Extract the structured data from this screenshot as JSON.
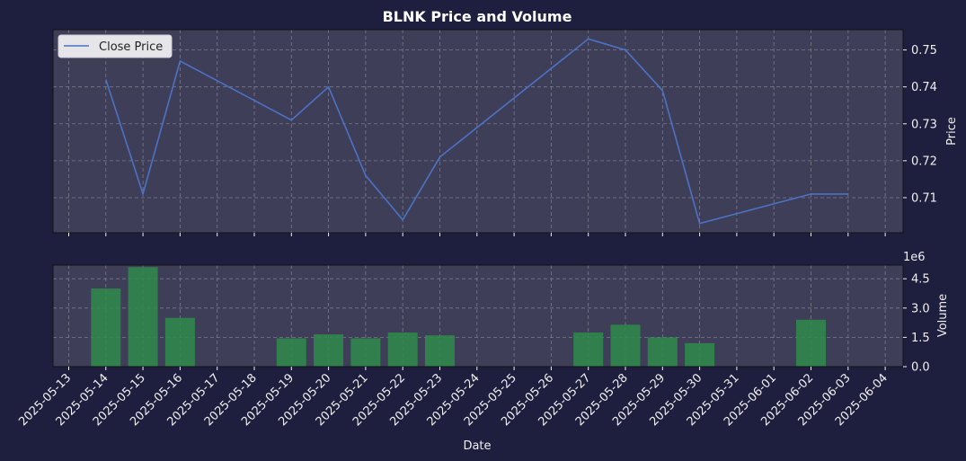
{
  "chart_data": {
    "title": "BLNK Price and Volume",
    "xlabel": "Date",
    "date_ticks": [
      "2025-05-13",
      "2025-05-14",
      "2025-05-15",
      "2025-05-16",
      "2025-05-17",
      "2025-05-18",
      "2025-05-19",
      "2025-05-20",
      "2025-05-21",
      "2025-05-22",
      "2025-05-23",
      "2025-05-24",
      "2025-05-25",
      "2025-05-26",
      "2025-05-27",
      "2025-05-28",
      "2025-05-29",
      "2025-05-30",
      "2025-05-31",
      "2025-06-01",
      "2025-06-02",
      "2025-06-03",
      "2025-06-04"
    ],
    "price_panel": {
      "type": "line",
      "ylabel": "Price",
      "ylim": [
        0.7005,
        0.7555
      ],
      "yticks": [
        0.71,
        0.72,
        0.73,
        0.74,
        0.75
      ],
      "ytick_labels": [
        "0.71",
        "0.72",
        "0.73",
        "0.74",
        "0.75"
      ],
      "grid": true,
      "legend_position": "top-left",
      "series": [
        {
          "name": "Close Price",
          "color": "#4c72c4",
          "x": [
            "2025-05-14",
            "2025-05-15",
            "2025-05-16",
            "2025-05-19",
            "2025-05-20",
            "2025-05-21",
            "2025-05-22",
            "2025-05-23",
            "2025-05-27",
            "2025-05-28",
            "2025-05-29",
            "2025-05-30",
            "2025-06-02",
            "2025-06-03"
          ],
          "y": [
            0.742,
            0.711,
            0.747,
            0.731,
            0.74,
            0.716,
            0.704,
            0.721,
            0.753,
            0.75,
            0.739,
            0.703,
            0.711,
            0.711
          ]
        }
      ]
    },
    "volume_panel": {
      "type": "bar",
      "ylabel": "Volume",
      "offset_label": "1e6",
      "ylim": [
        0,
        5200000
      ],
      "yticks": [
        0,
        1500000,
        3000000,
        4500000
      ],
      "ytick_labels": [
        "0.0",
        "1.5",
        "3.0",
        "4.5"
      ],
      "grid": true,
      "bar_color": "#2e8b4a",
      "x": [
        "2025-05-14",
        "2025-05-15",
        "2025-05-16",
        "2025-05-19",
        "2025-05-20",
        "2025-05-21",
        "2025-05-22",
        "2025-05-23",
        "2025-05-27",
        "2025-05-28",
        "2025-05-29",
        "2025-05-30",
        "2025-06-02"
      ],
      "values": [
        4000000,
        5100000,
        2500000,
        1450000,
        1650000,
        1450000,
        1750000,
        1600000,
        1750000,
        2150000,
        1500000,
        1200000,
        2400000
      ]
    }
  }
}
